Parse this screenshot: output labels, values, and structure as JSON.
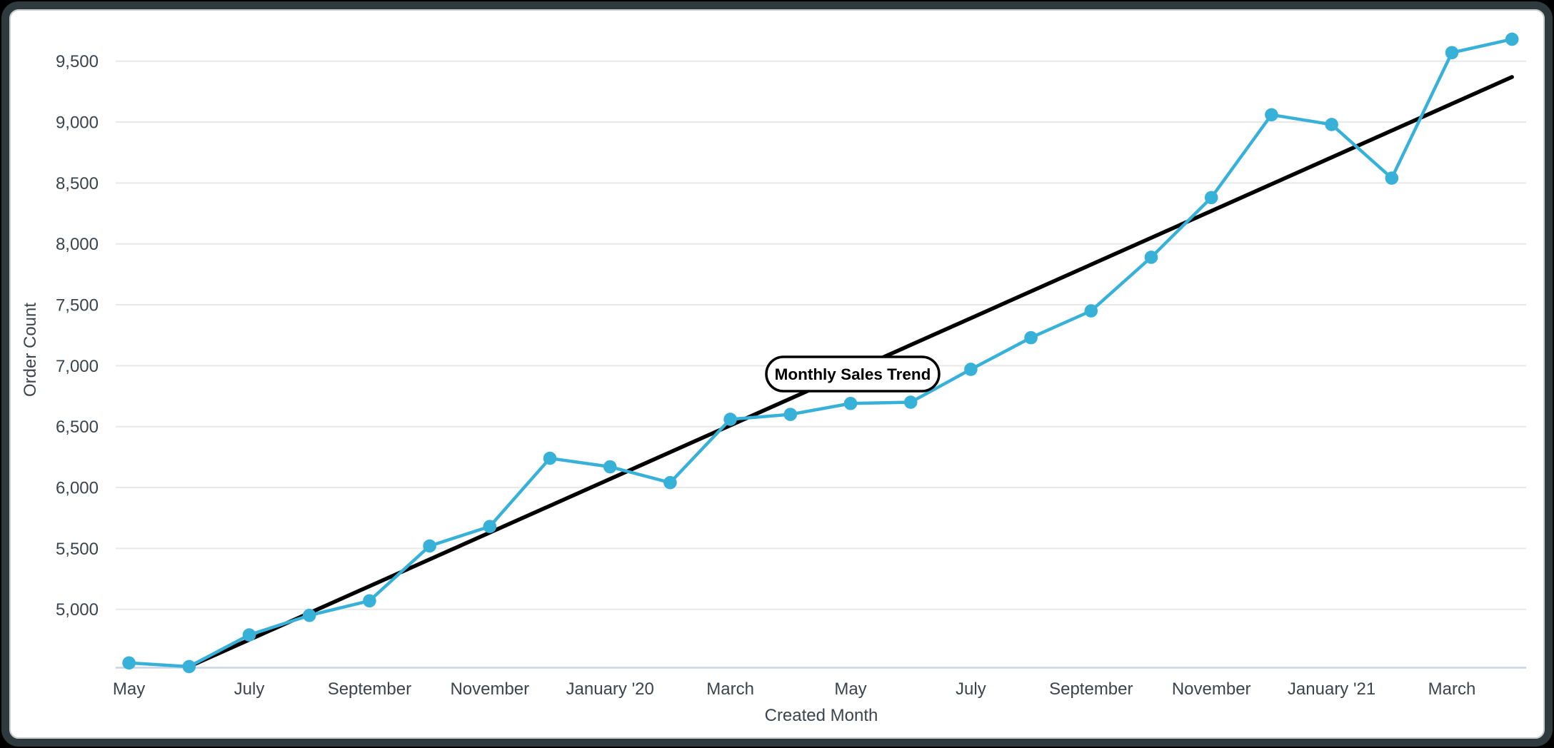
{
  "colors": {
    "page_background": "#000000",
    "card_background": "#ffffff",
    "card_border": "#2e3a3d",
    "series_line": "#38b1d8",
    "trend_line": "#000000",
    "gridline": "#e8e8e8",
    "x_axis_line": "#c9d2e6",
    "tick_text": "#3c444c",
    "pill_fill": "#ffffff",
    "pill_border": "#000000"
  },
  "annotation": {
    "label": "Monthly Sales Trend"
  },
  "axes": {
    "x_title": "Created Month",
    "y_title": "Order Count"
  },
  "chart_data": {
    "type": "line",
    "title": "Monthly Sales Trend",
    "xlabel": "Created Month",
    "ylabel": "Order Count",
    "grid": true,
    "legend_position": "none",
    "ylim": [
      4520,
      9830
    ],
    "categories": [
      "May 2019",
      "Jun 2019",
      "Jul 2019",
      "Aug 2019",
      "Sep 2019",
      "Oct 2019",
      "Nov 2019",
      "Dec 2019",
      "Jan 2020",
      "Feb 2020",
      "Mar 2020",
      "Apr 2020",
      "May 2020",
      "Jun 2020",
      "Jul 2020",
      "Aug 2020",
      "Sep 2020",
      "Oct 2020",
      "Nov 2020",
      "Dec 2020",
      "Jan 2021",
      "Feb 2021",
      "Mar 2021",
      "Apr 2021"
    ],
    "series": [
      {
        "name": "Order Count",
        "color": "#38b1d8",
        "values": [
          4560,
          4530,
          4790,
          4950,
          5070,
          5520,
          5680,
          6240,
          6170,
          6040,
          6560,
          6600,
          6690,
          6700,
          6970,
          7230,
          7450,
          7890,
          8380,
          9060,
          8980,
          8540,
          9570,
          9680
        ]
      },
      {
        "name": "Linear Trend",
        "type": "trend",
        "color": "#000000",
        "endpoints": {
          "from": {
            "category": "Jun 2019",
            "value": 4530
          },
          "to": {
            "category": "Apr 2021",
            "value": 9370
          }
        }
      }
    ],
    "x_tick_every": 2,
    "x_tick_labels": [
      "May",
      "July",
      "September",
      "November",
      "January '20",
      "March",
      "May",
      "July",
      "September",
      "November",
      "January '21",
      "March"
    ],
    "y_ticks": [
      5000,
      5500,
      6000,
      6500,
      7000,
      7500,
      8000,
      8500,
      9000,
      9500
    ],
    "y_tick_labels": [
      "5,000",
      "5,500",
      "6,000",
      "6,500",
      "7,000",
      "7,500",
      "8,000",
      "8,500",
      "9,000",
      "9,500"
    ]
  }
}
